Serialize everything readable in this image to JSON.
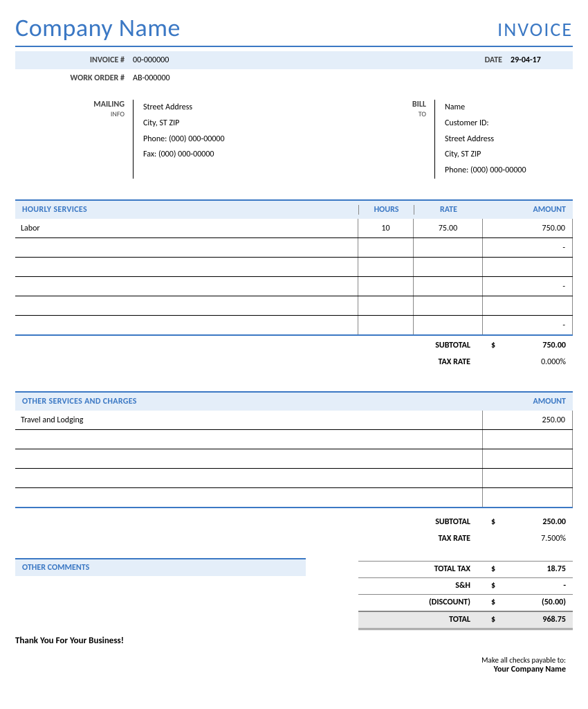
{
  "header": {
    "company_name": "Company Name",
    "invoice_title": "INVOICE"
  },
  "meta": {
    "invoice_label": "INVOICE #",
    "invoice_value": "00-000000",
    "workorder_label": "WORK ORDER #",
    "workorder_value": "AB-000000",
    "date_label": "DATE",
    "date_value": "29-04-17"
  },
  "mailing": {
    "label_top": "MAILING",
    "label_sub": "INFO",
    "lines": [
      "Street Address",
      "City, ST  ZIP",
      "Phone: (000) 000-00000",
      "Fax: (000) 000-00000"
    ]
  },
  "billto": {
    "label_top": "BILL",
    "label_sub": "TO",
    "lines": [
      "Name",
      "Customer ID:",
      "Street Address",
      "City, ST  ZIP",
      "Phone: (000) 000-00000"
    ]
  },
  "hourly": {
    "title": "HOURLY SERVICES",
    "col_hours": "HOURS",
    "col_rate": "RATE",
    "col_amount": "AMOUNT",
    "rows": [
      {
        "desc": "Labor",
        "hours": "10",
        "rate": "75.00",
        "amount": "750.00"
      },
      {
        "desc": "",
        "hours": "",
        "rate": "",
        "amount": "-"
      },
      {
        "desc": "",
        "hours": "",
        "rate": "",
        "amount": ""
      },
      {
        "desc": "",
        "hours": "",
        "rate": "",
        "amount": "-"
      },
      {
        "desc": "",
        "hours": "",
        "rate": "",
        "amount": ""
      },
      {
        "desc": "",
        "hours": "",
        "rate": "",
        "amount": "-"
      }
    ],
    "subtotal_label": "SUBTOTAL",
    "subtotal_cur": "$",
    "subtotal_value": "750.00",
    "taxrate_label": "TAX RATE",
    "taxrate_value": "0.000%"
  },
  "other": {
    "title": "OTHER SERVICES AND CHARGES",
    "col_amount": "AMOUNT",
    "rows": [
      {
        "desc": "Travel and Lodging",
        "amount": "250.00"
      },
      {
        "desc": "",
        "amount": ""
      },
      {
        "desc": "",
        "amount": ""
      },
      {
        "desc": "",
        "amount": ""
      },
      {
        "desc": "",
        "amount": ""
      }
    ],
    "subtotal_label": "SUBTOTAL",
    "subtotal_cur": "$",
    "subtotal_value": "250.00",
    "taxrate_label": "TAX RATE",
    "taxrate_value": "7.500%"
  },
  "comments": {
    "title": "OTHER COMMENTS"
  },
  "summary": {
    "totaltax_label": "TOTAL TAX",
    "totaltax_cur": "$",
    "totaltax_value": "18.75",
    "sh_label": "S&H",
    "sh_cur": "$",
    "sh_value": "-",
    "discount_label": "(DISCOUNT)",
    "discount_cur": "$",
    "discount_value": "(50.00)",
    "total_label": "TOTAL",
    "total_cur": "$",
    "total_value": "968.75"
  },
  "thankyou": "Thank You For Your Business!",
  "footer": {
    "line1": "Make all checks payable to:",
    "line2": "Your Company Name"
  },
  "colors": {
    "accent_blue": "#3b78c4",
    "header_fill": "#e4eef9"
  }
}
